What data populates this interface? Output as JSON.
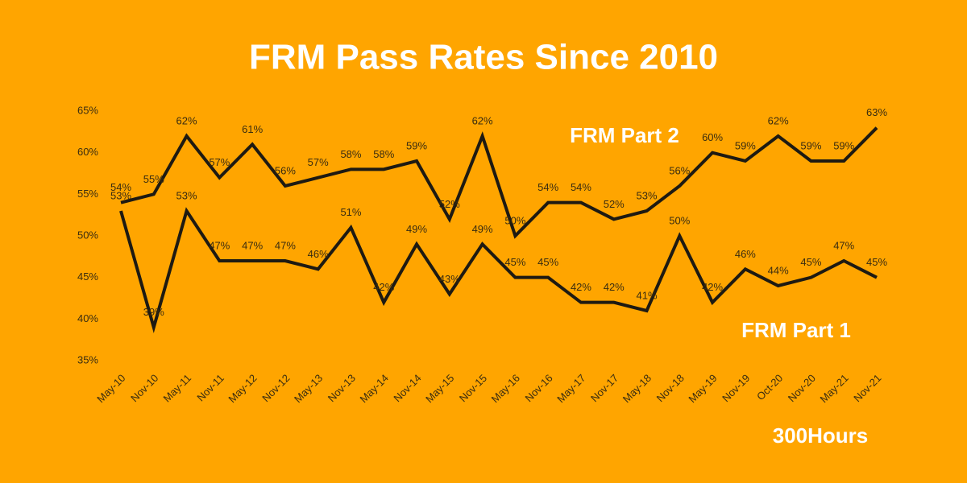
{
  "chart_data": {
    "type": "line",
    "title": "FRM Pass Rates Since 2010",
    "source": "300Hours",
    "categories": [
      "May-10",
      "Nov-10",
      "May-11",
      "Nov-11",
      "May-12",
      "Nov-12",
      "May-13",
      "Nov-13",
      "May-14",
      "Nov-14",
      "May-15",
      "Nov-15",
      "May-16",
      "Nov-16",
      "May-17",
      "Nov-17",
      "May-18",
      "Nov-18",
      "May-19",
      "Nov-19",
      "Oct-20",
      "Nov-20",
      "May-21",
      "Nov-21"
    ],
    "series": [
      {
        "name": "FRM Part 2",
        "color": "#1e1a12",
        "values": [
          54,
          55,
          62,
          57,
          61,
          56,
          57,
          58,
          58,
          59,
          52,
          62,
          50,
          54,
          54,
          52,
          53,
          56,
          60,
          59,
          62,
          59,
          59,
          63
        ],
        "value_labels": [
          "54%",
          "55%",
          "62%",
          "57%",
          "61%",
          "56%",
          "57%",
          "58%",
          "58%",
          "59%",
          "52%",
          "62%",
          "50%",
          "54%",
          "54%",
          "52%",
          "53%",
          "56%",
          "60%",
          "59%",
          "62%",
          "59%",
          "59%",
          "63%"
        ]
      },
      {
        "name": "FRM Part 1",
        "color": "#1e1a12",
        "values": [
          53,
          39,
          53,
          47,
          47,
          47,
          46,
          51,
          42,
          49,
          43,
          49,
          45,
          45,
          42,
          42,
          41,
          50,
          42,
          46,
          44,
          45,
          47,
          45
        ],
        "value_labels": [
          "53%",
          "39%",
          "53%",
          "47%",
          "47%",
          "47%",
          "46%",
          "51%",
          "42%",
          "49%",
          "43%",
          "49%",
          "45%",
          "45%",
          "42%",
          "42%",
          "41%",
          "50%",
          "42%",
          "46%",
          "44%",
          "45%",
          "47%",
          "45%"
        ]
      }
    ],
    "ylim": [
      35,
      65
    ],
    "yticks": [
      {
        "value": 35,
        "label": "35%"
      },
      {
        "value": 40,
        "label": "40%"
      },
      {
        "value": 45,
        "label": "45%"
      },
      {
        "value": 50,
        "label": "50%"
      },
      {
        "value": 55,
        "label": "55%"
      },
      {
        "value": 60,
        "label": "60%"
      },
      {
        "value": 65,
        "label": "65%"
      }
    ],
    "grid": false
  }
}
